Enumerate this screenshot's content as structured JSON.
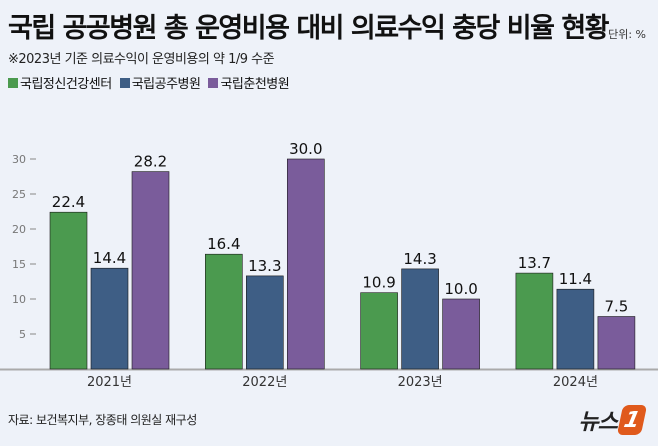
{
  "chart_data": {
    "type": "bar",
    "title": "국립 공공병원 총 운영비용 대비 의료수익 충당 비율 현황",
    "subtitle": "※2023년 기준 의료수익이 운영비용의 약 1/9 수준",
    "unit": "단위: %",
    "categories": [
      "2021년",
      "2022년",
      "2023년",
      "2024년"
    ],
    "series": [
      {
        "name": "국립정신건강센터",
        "color": "#4b9a4f",
        "values": [
          22.4,
          16.4,
          10.9,
          13.7
        ]
      },
      {
        "name": "국립공주병원",
        "color": "#3e5e85",
        "values": [
          14.4,
          13.3,
          14.3,
          11.4
        ]
      },
      {
        "name": "국립춘천병원",
        "color": "#7a5c9b",
        "values": [
          28.2,
          30.0,
          10.0,
          7.5
        ]
      }
    ],
    "yticks": [
      5,
      10,
      15,
      20,
      25,
      30
    ],
    "ylim": [
      0,
      30
    ],
    "grid": false,
    "legend": "top-left",
    "source": "자료: 보건복지부, 장종태 의원실 재구성"
  },
  "logo": {
    "text": "뉴스",
    "mark": "1"
  }
}
